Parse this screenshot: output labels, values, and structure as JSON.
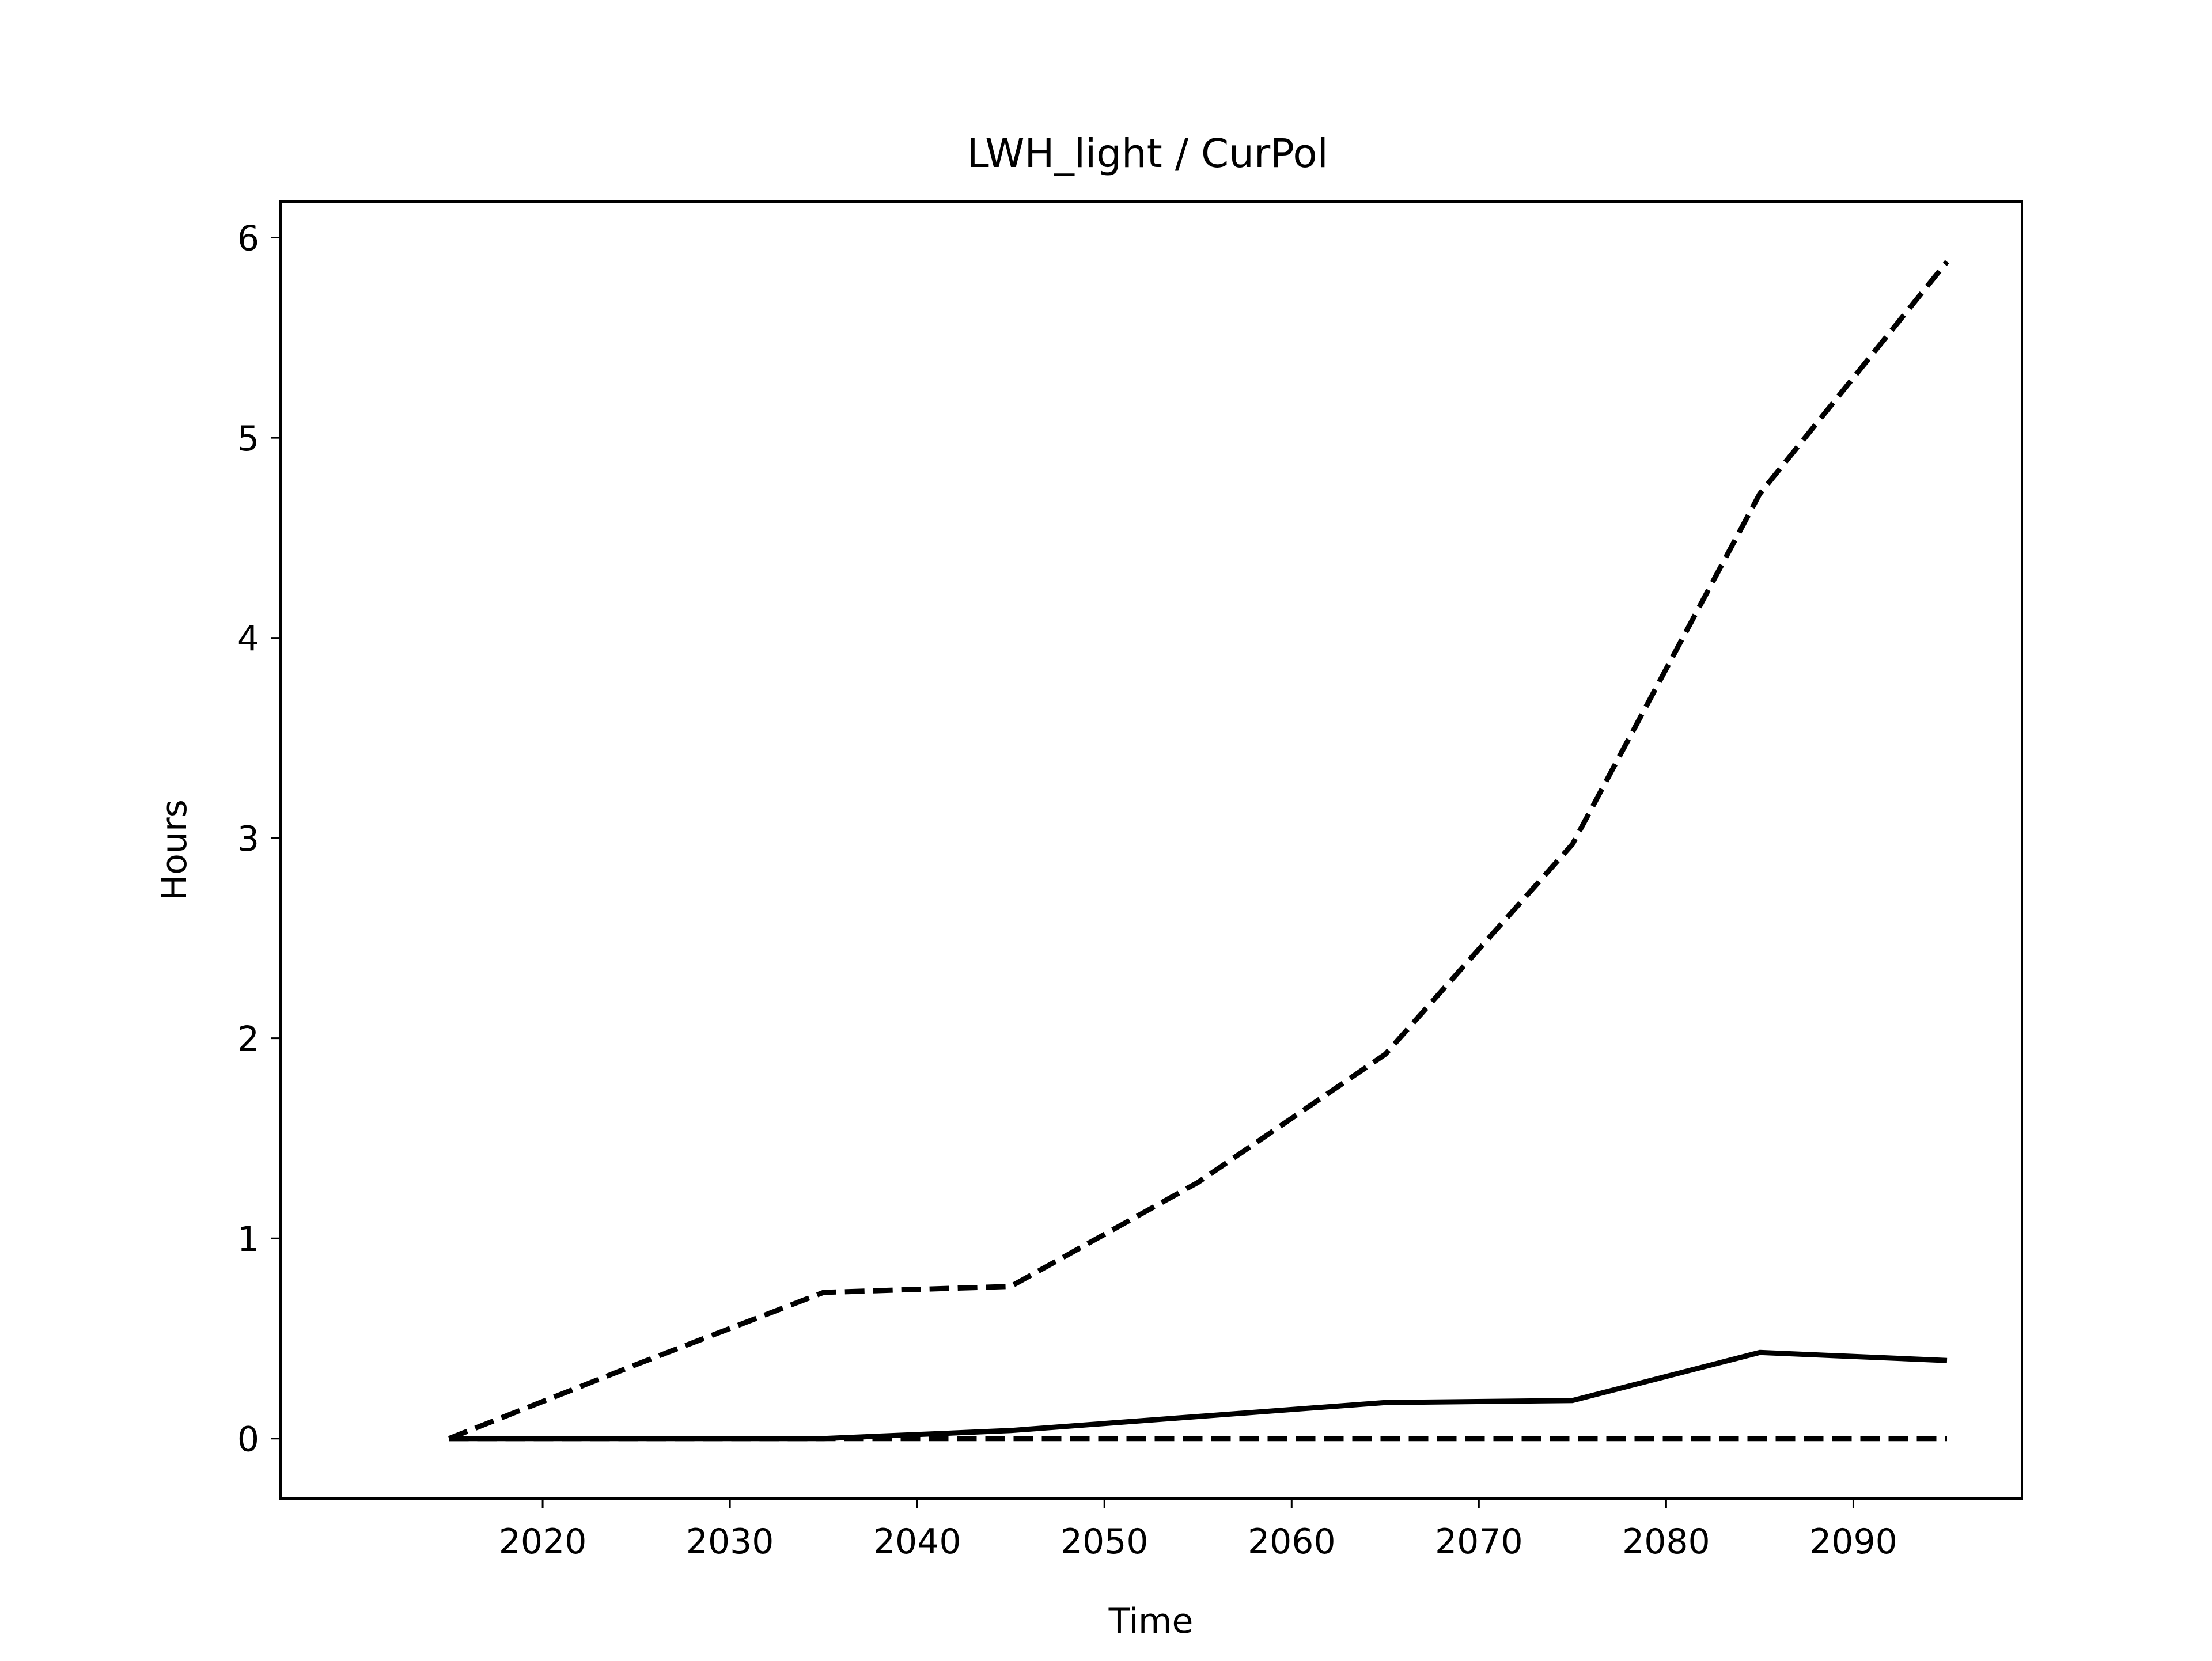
{
  "chart_data": {
    "type": "line",
    "title": "LWH_light / CurPol",
    "xlabel": "Time",
    "ylabel": "Hours",
    "x": [
      2015,
      2025,
      2035,
      2045,
      2055,
      2065,
      2075,
      2085,
      2095
    ],
    "xlim": [
      2006,
      2099
    ],
    "ylim": [
      -0.3,
      6.18
    ],
    "xticks": [
      2020,
      2030,
      2040,
      2050,
      2060,
      2070,
      2080,
      2090
    ],
    "yticks": [
      0,
      1,
      2,
      3,
      4,
      5,
      6
    ],
    "grid": false,
    "series": [
      {
        "style": "dashed",
        "color": "#000000",
        "values": [
          0.0,
          0.37,
          0.73,
          0.76,
          1.28,
          1.92,
          2.97,
          4.72,
          5.88
        ]
      },
      {
        "style": "solid",
        "color": "#000000",
        "values": [
          0.0,
          0.0,
          0.0,
          0.04,
          0.11,
          0.18,
          0.19,
          0.43,
          0.39
        ]
      },
      {
        "style": "dashed",
        "color": "#000000",
        "values": [
          0.0,
          0.0,
          0.0,
          0.0,
          0.0,
          0.0,
          0.0,
          0.0,
          0.0
        ]
      }
    ]
  }
}
